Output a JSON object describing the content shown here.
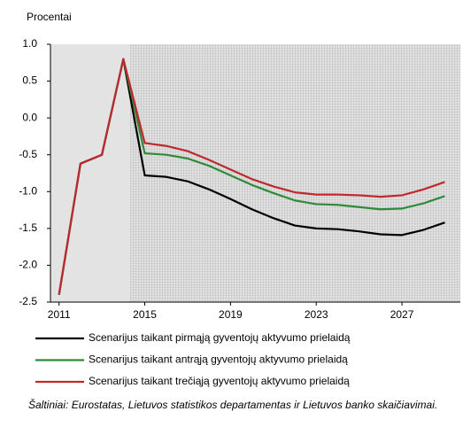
{
  "chart_data": {
    "type": "line",
    "y_axis_label": "Procentai",
    "x": [
      2011,
      2012,
      2013,
      2014,
      2015,
      2016,
      2017,
      2018,
      2019,
      2020,
      2021,
      2022,
      2023,
      2024,
      2025,
      2026,
      2027,
      2028,
      2029
    ],
    "series": [
      {
        "name": "Scenarijus taikant pirmąją gyventojų aktyvumo prielaidą",
        "color": "#000000",
        "values": [
          -2.4,
          -0.62,
          -0.5,
          0.8,
          -0.78,
          -0.8,
          -0.86,
          -0.97,
          -1.1,
          -1.24,
          -1.36,
          -1.46,
          -1.5,
          -1.51,
          -1.54,
          -1.58,
          -1.59,
          -1.52,
          -1.42
        ]
      },
      {
        "name": "Scenarijus taikant antrąją gyventojų aktyvumo prielaidą",
        "color": "#2e8b3a",
        "values": [
          -2.4,
          -0.62,
          -0.5,
          0.8,
          -0.48,
          -0.5,
          -0.55,
          -0.65,
          -0.78,
          -0.91,
          -1.02,
          -1.12,
          -1.17,
          -1.18,
          -1.21,
          -1.24,
          -1.23,
          -1.16,
          -1.06
        ]
      },
      {
        "name": "Scenarijus taikant trečiąją gyventojų aktyvumo prielaidą",
        "color": "#c0282d",
        "values": [
          -2.4,
          -0.62,
          -0.5,
          0.8,
          -0.34,
          -0.38,
          -0.45,
          -0.57,
          -0.7,
          -0.83,
          -0.93,
          -1.01,
          -1.04,
          -1.04,
          -1.05,
          -1.07,
          -1.05,
          -0.97,
          -0.87
        ]
      }
    ],
    "xlim": [
      2010.6,
      2029.6
    ],
    "xticks": [
      2011,
      2015,
      2019,
      2023,
      2027
    ],
    "ylim": [
      -2.5,
      1.0
    ],
    "yticks": [
      {
        "value": 1.0,
        "label": "1.0"
      },
      0.5,
      {
        "value": 0.0,
        "label": "0.0"
      },
      -0.5,
      {
        "value": -1.0,
        "label": "-1.0"
      },
      -1.5,
      {
        "value": -2.0,
        "label": "-2.0"
      },
      -2.5
    ],
    "grid": false,
    "source": "Šaltiniai: Eurostatas, Lietuvos statistikos departamentas ir Lietuvos banko skaičiavimai."
  }
}
